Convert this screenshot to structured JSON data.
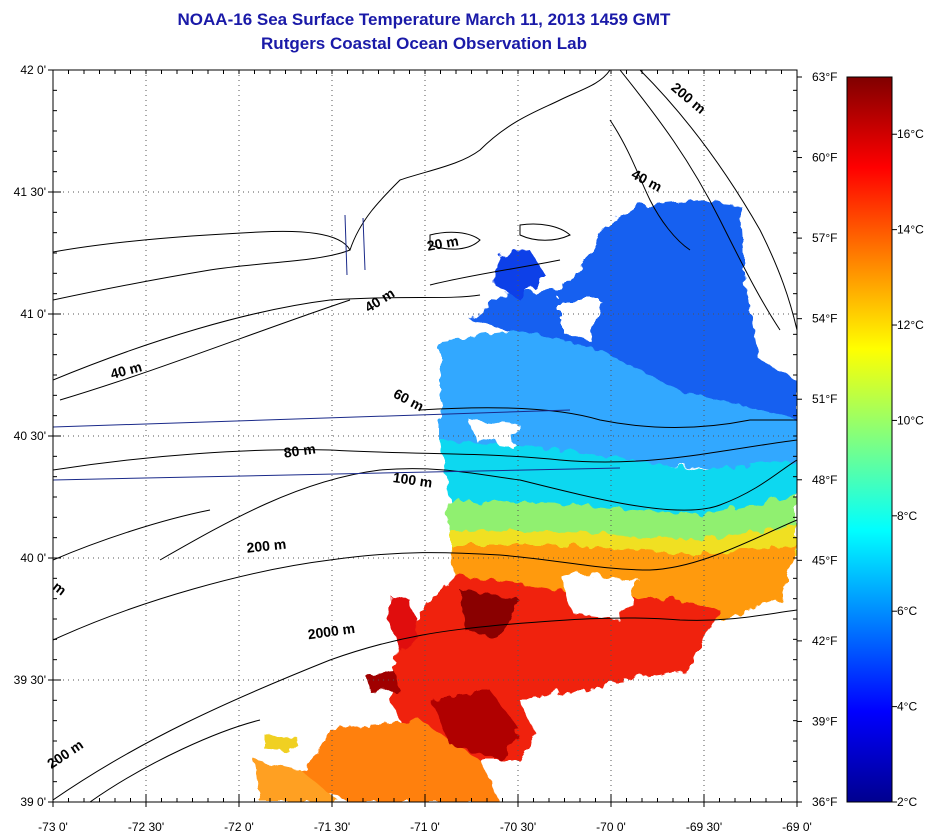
{
  "header": {
    "title": "NOAA-16 Sea Surface Temperature March 11, 2013 1459 GMT",
    "subtitle": "Rutgers Coastal Ocean Observation Lab"
  },
  "map": {
    "lon_range": [
      -73.0,
      -69.0
    ],
    "lat_range": [
      39.0,
      42.0
    ],
    "grid": true,
    "lat_ticks": [
      {
        "value": 42.0,
        "label": "42 0'"
      },
      {
        "value": 41.5,
        "label": "41 30'"
      },
      {
        "value": 41.0,
        "label": "41 0'"
      },
      {
        "value": 40.5,
        "label": "40 30'"
      },
      {
        "value": 40.0,
        "label": "40 0'"
      },
      {
        "value": 39.5,
        "label": "39 30'"
      },
      {
        "value": 39.0,
        "label": "39 0'"
      }
    ],
    "lon_ticks": [
      {
        "value": -73.0,
        "label": "-73 0'"
      },
      {
        "value": -72.5,
        "label": "-72 30'"
      },
      {
        "value": -72.0,
        "label": "-72 0'"
      },
      {
        "value": -71.5,
        "label": "-71 30'"
      },
      {
        "value": -71.0,
        "label": "-71 0'"
      },
      {
        "value": -70.5,
        "label": "-70 30'"
      },
      {
        "value": -70.0,
        "label": "-70 0'"
      },
      {
        "value": -69.5,
        "label": "-69 30'"
      },
      {
        "value": -69.0,
        "label": "-69 0'"
      }
    ],
    "fahrenheit_ticks": [
      {
        "value": 63,
        "label": "63°F"
      },
      {
        "value": 60,
        "label": "60°F"
      },
      {
        "value": 57,
        "label": "57°F"
      },
      {
        "value": 54,
        "label": "54°F"
      },
      {
        "value": 51,
        "label": "51°F"
      },
      {
        "value": 48,
        "label": "48°F"
      },
      {
        "value": 45,
        "label": "45°F"
      },
      {
        "value": 42,
        "label": "42°F"
      },
      {
        "value": 39,
        "label": "39°F"
      },
      {
        "value": 36,
        "label": "36°F"
      }
    ],
    "contour_labels": [
      {
        "text": "200 m",
        "lon": -69.6,
        "lat": 41.87,
        "rot": 40
      },
      {
        "text": "40 m",
        "lon": -69.82,
        "lat": 41.53,
        "rot": 28
      },
      {
        "text": "20 m",
        "lon": -70.9,
        "lat": 41.27,
        "rot": -10
      },
      {
        "text": "40 m",
        "lon": -71.23,
        "lat": 41.04,
        "rot": -32
      },
      {
        "text": "40 m",
        "lon": -72.6,
        "lat": 40.75,
        "rot": -15
      },
      {
        "text": "60 m",
        "lon": -71.1,
        "lat": 40.63,
        "rot": 28
      },
      {
        "text": "80 m",
        "lon": -71.67,
        "lat": 40.42,
        "rot": -8
      },
      {
        "text": "100 m",
        "lon": -71.07,
        "lat": 40.3,
        "rot": 8
      },
      {
        "text": "200 m",
        "lon": -71.85,
        "lat": 40.03,
        "rot": -6
      },
      {
        "text": "2000 m",
        "lon": -71.5,
        "lat": 39.68,
        "rot": -8
      },
      {
        "text": "200 m",
        "lon": -72.92,
        "lat": 39.18,
        "rot": -34
      },
      {
        "text": "m",
        "lon": -72.98,
        "lat": 39.86,
        "rot": 38
      }
    ]
  },
  "colorbar": {
    "celsius_ticks": [
      {
        "value": 16,
        "label": "16°C"
      },
      {
        "value": 14,
        "label": "14°C"
      },
      {
        "value": 12,
        "label": "12°C"
      },
      {
        "value": 10,
        "label": "10°C"
      },
      {
        "value": 8,
        "label": "8°C"
      },
      {
        "value": 6,
        "label": "6°C"
      },
      {
        "value": 4,
        "label": "4°C"
      },
      {
        "value": 2,
        "label": "2°C"
      }
    ],
    "range_c": [
      2,
      17.2
    ],
    "stops": [
      "#00008f",
      "#0000ff",
      "#0080ff",
      "#00ffff",
      "#80ff80",
      "#ffff00",
      "#ff8000",
      "#ff0000",
      "#800000"
    ]
  },
  "colors": {
    "title": "#1a1aa8",
    "coastline": "#000000",
    "transect": "#1a2a8a"
  }
}
